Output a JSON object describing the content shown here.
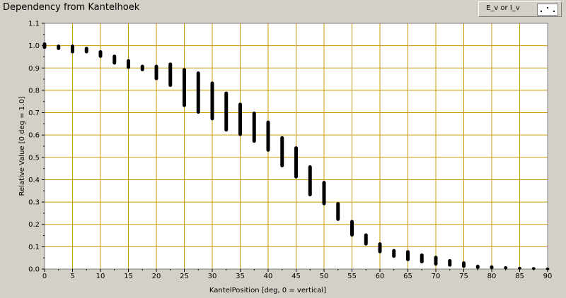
{
  "title": "Dependency from Kantelhoek",
  "legend": {
    "label": "E_v or I_v"
  },
  "chart_data": {
    "type": "scatter",
    "title": "Dependency from Kantelhoek",
    "xlabel": "KantelPosition [deg, 0 = vertical]",
    "ylabel": "Relative Value [0 deg = 1.0]",
    "xlim": [
      0,
      90
    ],
    "ylim": [
      0.0,
      1.1
    ],
    "xticks": [
      "0",
      "5",
      "10",
      "15",
      "20",
      "25",
      "30",
      "35",
      "40",
      "45",
      "50",
      "55",
      "60",
      "65",
      "70",
      "75",
      "80",
      "85",
      "90"
    ],
    "yticks": [
      "0.0",
      "0.1",
      "0.2",
      "0.3",
      "0.4",
      "0.5",
      "0.6",
      "0.7",
      "0.8",
      "0.9",
      "1.0",
      "1.1"
    ],
    "grid": true,
    "legend_position": "top-right",
    "background_color": "#ffffff",
    "grid_color": "#c89a00",
    "marker_color": "#000000",
    "columns": [
      {
        "x": 0,
        "ymin": 0.99,
        "ymax": 1.01
      },
      {
        "x": 2.5,
        "ymin": 0.985,
        "ymax": 1.0
      },
      {
        "x": 5,
        "ymin": 0.97,
        "ymax": 1.0
      },
      {
        "x": 7.5,
        "ymin": 0.97,
        "ymax": 0.99
      },
      {
        "x": 10,
        "ymin": 0.95,
        "ymax": 0.975
      },
      {
        "x": 12.5,
        "ymin": 0.92,
        "ymax": 0.955
      },
      {
        "x": 15,
        "ymin": 0.9,
        "ymax": 0.935
      },
      {
        "x": 17.5,
        "ymin": 0.89,
        "ymax": 0.91
      },
      {
        "x": 20,
        "ymin": 0.85,
        "ymax": 0.91
      },
      {
        "x": 22.5,
        "ymin": 0.82,
        "ymax": 0.92
      },
      {
        "x": 25,
        "ymin": 0.73,
        "ymax": 0.895
      },
      {
        "x": 27.5,
        "ymin": 0.7,
        "ymax": 0.88
      },
      {
        "x": 30,
        "ymin": 0.67,
        "ymax": 0.835
      },
      {
        "x": 32.5,
        "ymin": 0.62,
        "ymax": 0.79
      },
      {
        "x": 35,
        "ymin": 0.6,
        "ymax": 0.74
      },
      {
        "x": 37.5,
        "ymin": 0.57,
        "ymax": 0.7
      },
      {
        "x": 40,
        "ymin": 0.53,
        "ymax": 0.66
      },
      {
        "x": 42.5,
        "ymin": 0.46,
        "ymax": 0.59
      },
      {
        "x": 45,
        "ymin": 0.41,
        "ymax": 0.545
      },
      {
        "x": 47.5,
        "ymin": 0.33,
        "ymax": 0.46
      },
      {
        "x": 50,
        "ymin": 0.29,
        "ymax": 0.39
      },
      {
        "x": 52.5,
        "ymin": 0.22,
        "ymax": 0.295
      },
      {
        "x": 55,
        "ymin": 0.15,
        "ymax": 0.215
      },
      {
        "x": 57.5,
        "ymin": 0.11,
        "ymax": 0.155
      },
      {
        "x": 60,
        "ymin": 0.075,
        "ymax": 0.115
      },
      {
        "x": 62.5,
        "ymin": 0.055,
        "ymax": 0.085
      },
      {
        "x": 65,
        "ymin": 0.04,
        "ymax": 0.08
      },
      {
        "x": 67.5,
        "ymin": 0.03,
        "ymax": 0.065
      },
      {
        "x": 70,
        "ymin": 0.02,
        "ymax": 0.055
      },
      {
        "x": 72.5,
        "ymin": 0.015,
        "ymax": 0.04
      },
      {
        "x": 75,
        "ymin": 0.01,
        "ymax": 0.03
      },
      {
        "x": 77.5,
        "ymin": 0.005,
        "ymax": 0.015
      },
      {
        "x": 80,
        "ymin": 0.004,
        "ymax": 0.012
      },
      {
        "x": 82.5,
        "ymin": 0.003,
        "ymax": 0.008
      },
      {
        "x": 85,
        "ymin": 0.002,
        "ymax": 0.005
      },
      {
        "x": 87.5,
        "ymin": 0.001,
        "ymax": 0.004
      },
      {
        "x": 90,
        "ymin": 0.0,
        "ymax": 0.002
      }
    ]
  }
}
